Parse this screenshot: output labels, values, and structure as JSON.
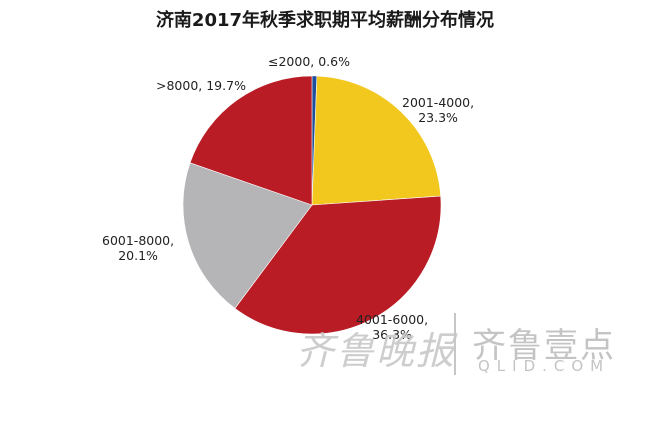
{
  "chart_data": {
    "type": "pie",
    "title": "济南2017年秋季求职期平均薪酬分布情况",
    "categories": [
      "≤2000",
      "2001-4000",
      "4001-6000",
      "6001-8000",
      ">8000"
    ],
    "values": [
      0.6,
      23.3,
      36.3,
      20.1,
      19.7
    ],
    "unit": "%",
    "colors": [
      "#1f4e9a",
      "#f2c81f",
      "#b91c24",
      "#b5b5b7",
      "#b91c24"
    ],
    "start_angle_deg": 0,
    "direction": "clockwise",
    "legend": "none (data labels)"
  },
  "labels": {
    "l0": "≤2000, 0.6%",
    "l1a": "2001-4000,",
    "l1b": "23.3%",
    "l2a": "4001-6000,",
    "l2b": "36.3%",
    "l3a": "6001-8000,",
    "l3b": "20.1%",
    "l4": ">8000, 19.7%"
  },
  "watermark": {
    "left_text": "齐鲁晚报",
    "right_text": "齐鲁壹点",
    "url": "QLID.COM"
  }
}
